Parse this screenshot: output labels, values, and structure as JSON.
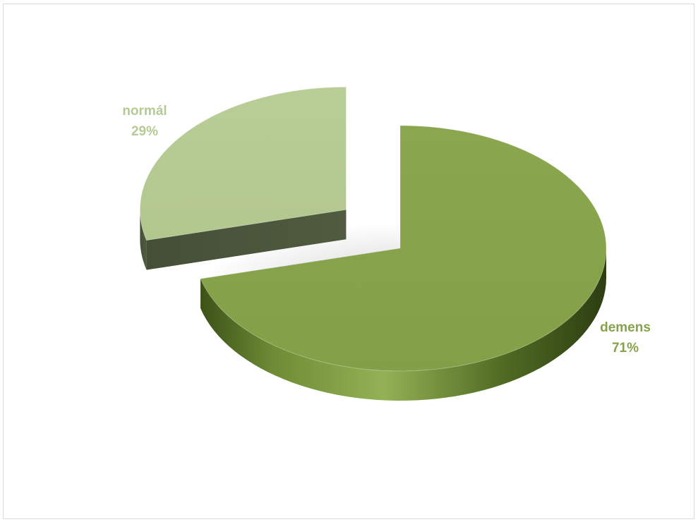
{
  "chart_data": {
    "type": "pie",
    "title": "",
    "categories": [
      "demens",
      "normál"
    ],
    "values": [
      71,
      29
    ],
    "data_labels": [
      {
        "category": "demens",
        "percent": "71%"
      },
      {
        "category": "normál",
        "percent": "29%"
      }
    ],
    "colors": {
      "demens": "#86a24b",
      "normál": "#b6cb93"
    },
    "style": "3d-exploded",
    "legend": "none"
  }
}
